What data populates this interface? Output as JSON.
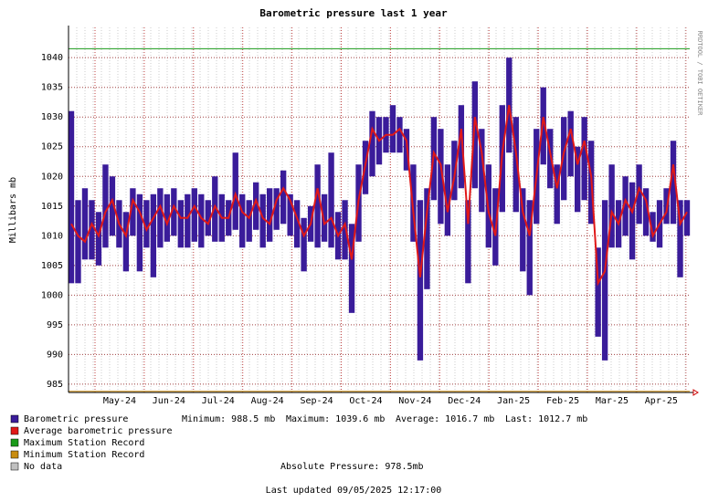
{
  "chart_data": {
    "type": "range-bar",
    "title": "Barometric pressure last 1 year",
    "y_label": "Millibars   mb",
    "side_label": "RRDTOOL / TOBI OETIKER",
    "x_labels": [
      "May-24",
      "Jun-24",
      "Jul-24",
      "Aug-24",
      "Sep-24",
      "Oct-24",
      "Nov-24",
      "Dec-24",
      "Jan-25",
      "Feb-25",
      "Mar-25",
      "Apr-25"
    ],
    "ylim": [
      983.6,
      1045.1
    ],
    "yticks": [
      985,
      990,
      995,
      1000,
      1005,
      1010,
      1015,
      1020,
      1025,
      1030,
      1035,
      1040
    ],
    "grid": true,
    "series": [
      {
        "name": "Barometric pressure",
        "color": "#3a1c9a",
        "low": [
          1002,
          1002,
          1006,
          1006,
          1005,
          1008,
          1010,
          1008,
          1004,
          1010,
          1004,
          1008,
          1003,
          1008,
          1009,
          1010,
          1008,
          1008,
          1009,
          1008,
          1010,
          1009,
          1009,
          1010,
          1011,
          1008,
          1009,
          1011,
          1008,
          1009,
          1011,
          1012,
          1010,
          1008,
          1004,
          1009,
          1008,
          1009,
          1008,
          1006,
          1006,
          997,
          1009,
          1017,
          1020,
          1022,
          1024,
          1024,
          1024,
          1021,
          1009,
          989,
          1001,
          1016,
          1012,
          1010,
          1016,
          1018,
          1002,
          1018,
          1014,
          1008,
          1005,
          1014,
          1024,
          1014,
          1004,
          1000,
          1012,
          1022,
          1018,
          1012,
          1016,
          1020,
          1014,
          1016,
          1012,
          993,
          989,
          1008,
          1008,
          1010,
          1006,
          1012,
          1010,
          1009,
          1008,
          1012,
          1012,
          1003,
          1010
        ],
        "high": [
          1031,
          1016,
          1018,
          1016,
          1014,
          1022,
          1020,
          1016,
          1014,
          1018,
          1017,
          1016,
          1017,
          1018,
          1017,
          1018,
          1016,
          1017,
          1018,
          1017,
          1016,
          1020,
          1017,
          1016,
          1024,
          1017,
          1016,
          1019,
          1017,
          1018,
          1018,
          1021,
          1017,
          1016,
          1013,
          1015,
          1022,
          1017,
          1024,
          1014,
          1016,
          1012,
          1022,
          1026,
          1031,
          1030,
          1030,
          1032,
          1030,
          1028,
          1022,
          1016,
          1018,
          1030,
          1028,
          1022,
          1026,
          1032,
          1016,
          1036,
          1028,
          1022,
          1018,
          1032,
          1040,
          1030,
          1018,
          1016,
          1028,
          1035,
          1028,
          1022,
          1030,
          1031,
          1025,
          1030,
          1026,
          1008,
          1016,
          1022,
          1016,
          1020,
          1019,
          1022,
          1018,
          1014,
          1016,
          1018,
          1026,
          1016,
          1016
        ]
      },
      {
        "name": "Average barometric pressure",
        "color": "#e01818",
        "values": [
          1012,
          1010,
          1009,
          1012,
          1010,
          1014,
          1016,
          1012,
          1010,
          1016,
          1014,
          1011,
          1013,
          1015,
          1012,
          1015,
          1013,
          1013,
          1015,
          1013,
          1012,
          1015,
          1013,
          1013,
          1017,
          1014,
          1013,
          1016,
          1013,
          1012,
          1016,
          1018,
          1016,
          1013,
          1010,
          1012,
          1018,
          1012,
          1013,
          1010,
          1012,
          1006,
          1016,
          1022,
          1028,
          1026,
          1027,
          1027,
          1028,
          1026,
          1014,
          1003,
          1014,
          1024,
          1022,
          1014,
          1020,
          1028,
          1012,
          1030,
          1024,
          1014,
          1010,
          1024,
          1032,
          1024,
          1014,
          1010,
          1020,
          1030,
          1024,
          1018,
          1024,
          1028,
          1022,
          1026,
          1020,
          1002,
          1004,
          1014,
          1012,
          1016,
          1014,
          1018,
          1016,
          1010,
          1012,
          1014,
          1022,
          1012,
          1014
        ]
      },
      {
        "name": "Maximum Station Record",
        "color": "#1a9a1a",
        "value": 1041.5
      },
      {
        "name": "Minimum Station Record",
        "color": "#c88c10",
        "value": 983.8
      },
      {
        "name": "No data",
        "color": "#c0c0c0"
      }
    ],
    "stats": [
      "Minimum: 988.5 mb",
      "Maximum: 1039.6 mb",
      "Average: 1016.7 mb",
      "Last: 1012.7 mb"
    ],
    "absolute_pressure": "Absolute Pressure:  978.5mb",
    "updated": "Last updated 09/05/2025 12:17:00"
  }
}
